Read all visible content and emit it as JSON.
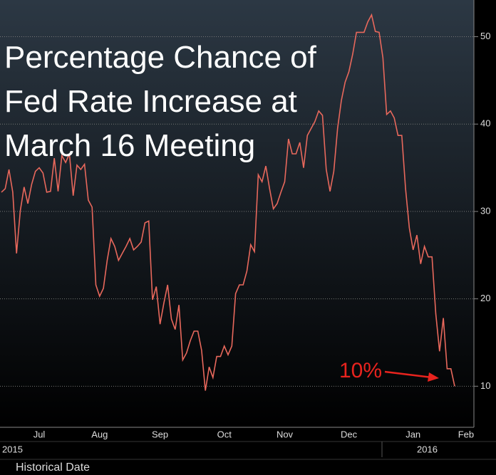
{
  "chart_data": {
    "type": "line",
    "title": "Percentage Chance of Fed Rate Increase at March 16 Meeting",
    "x_label": "Historical Date",
    "year_labels": [
      "2015",
      "2016"
    ],
    "annotation": "10%",
    "color": "#e8685c",
    "categories": [
      null,
      null,
      null,
      null,
      null,
      null,
      null,
      null,
      null,
      null,
      "Jul",
      null,
      null,
      null,
      null,
      null,
      null,
      null,
      null,
      null,
      null,
      null,
      null,
      null,
      null,
      null,
      "Aug",
      null,
      null,
      null,
      null,
      null,
      null,
      null,
      null,
      null,
      null,
      null,
      null,
      null,
      null,
      null,
      "Sep",
      null,
      null,
      null,
      null,
      null,
      null,
      null,
      null,
      null,
      null,
      null,
      null,
      null,
      null,
      null,
      null,
      "Oct",
      null,
      null,
      null,
      null,
      null,
      null,
      null,
      null,
      null,
      null,
      null,
      null,
      null,
      null,
      null,
      "Nov",
      null,
      null,
      null,
      null,
      null,
      null,
      null,
      null,
      null,
      null,
      null,
      null,
      null,
      null,
      null,
      null,
      "Dec",
      null,
      null,
      null,
      null,
      null,
      null,
      null,
      null,
      null,
      null,
      null,
      null,
      null,
      null,
      null,
      null,
      "Jan",
      null,
      null,
      null,
      null,
      null,
      null,
      null,
      null,
      null,
      null,
      null,
      null,
      null,
      "Feb",
      null,
      null
    ],
    "values": [
      32.2,
      32.6,
      34.8,
      32.2,
      25.2,
      30.1,
      32.8,
      30.9,
      33.1,
      34.6,
      35.0,
      34.4,
      32.2,
      32.3,
      36.1,
      32.3,
      36.4,
      35.6,
      36.6,
      31.8,
      35.3,
      34.8,
      35.4,
      31.3,
      30.5,
      21.6,
      20.3,
      21.2,
      24.4,
      26.9,
      26.0,
      24.4,
      25.2,
      26.0,
      26.9,
      25.6,
      26.0,
      26.5,
      28.7,
      28.9,
      19.9,
      21.4,
      17.1,
      19.5,
      21.6,
      17.7,
      16.5,
      19.3,
      13.0,
      13.8,
      15.2,
      16.3,
      16.3,
      14.1,
      9.5,
      12.2,
      11.0,
      13.4,
      13.4,
      14.6,
      13.6,
      14.6,
      20.6,
      21.6,
      21.6,
      23.2,
      26.2,
      25.4,
      34.2,
      33.4,
      35.2,
      32.6,
      30.3,
      30.9,
      32.2,
      33.4,
      38.3,
      36.6,
      36.6,
      37.9,
      35.0,
      38.7,
      39.5,
      40.3,
      41.5,
      41.0,
      34.8,
      32.3,
      34.6,
      39.5,
      42.7,
      44.8,
      46.0,
      48.0,
      50.5,
      50.5,
      50.5,
      51.7,
      52.5,
      50.6,
      50.5,
      47.6,
      41.1,
      41.5,
      40.7,
      38.7,
      38.7,
      32.6,
      28.1,
      25.6,
      27.3,
      24.0,
      26.0,
      24.8,
      24.8,
      18.3,
      14.0,
      17.8,
      12.0,
      12.0,
      10.0,
      null,
      null,
      null,
      null,
      null
    ],
    "ylim": [
      5.3,
      54.2
    ],
    "yticks": [
      10,
      20,
      30,
      40,
      50
    ],
    "grid": true
  }
}
